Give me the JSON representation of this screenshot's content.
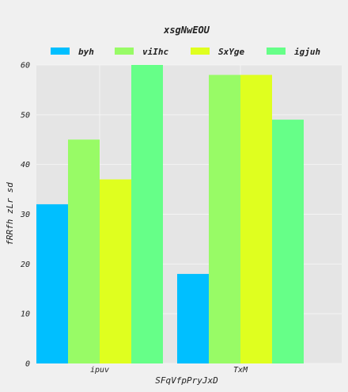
{
  "chart_data": {
    "type": "bar",
    "title": "xsgNwEOU",
    "xlabel": "SFqVfpPryJxD",
    "ylabel": "fRRfh zLr sd",
    "categories": [
      "ipuv",
      "TxM"
    ],
    "series": [
      {
        "name": "byh",
        "color": "#00bfff",
        "values": [
          32,
          18
        ]
      },
      {
        "name": "viIhc",
        "color": "#98fb66",
        "values": [
          45,
          58
        ]
      },
      {
        "name": "SxYge",
        "color": "#dfff1f",
        "values": [
          37,
          58
        ]
      },
      {
        "name": "igjuh",
        "color": "#66ff88",
        "values": [
          60,
          49
        ]
      }
    ],
    "ylim": [
      0,
      60
    ],
    "yticks": [
      0,
      10,
      20,
      30,
      40,
      50,
      60
    ],
    "grid": true,
    "legend_position": "top"
  }
}
